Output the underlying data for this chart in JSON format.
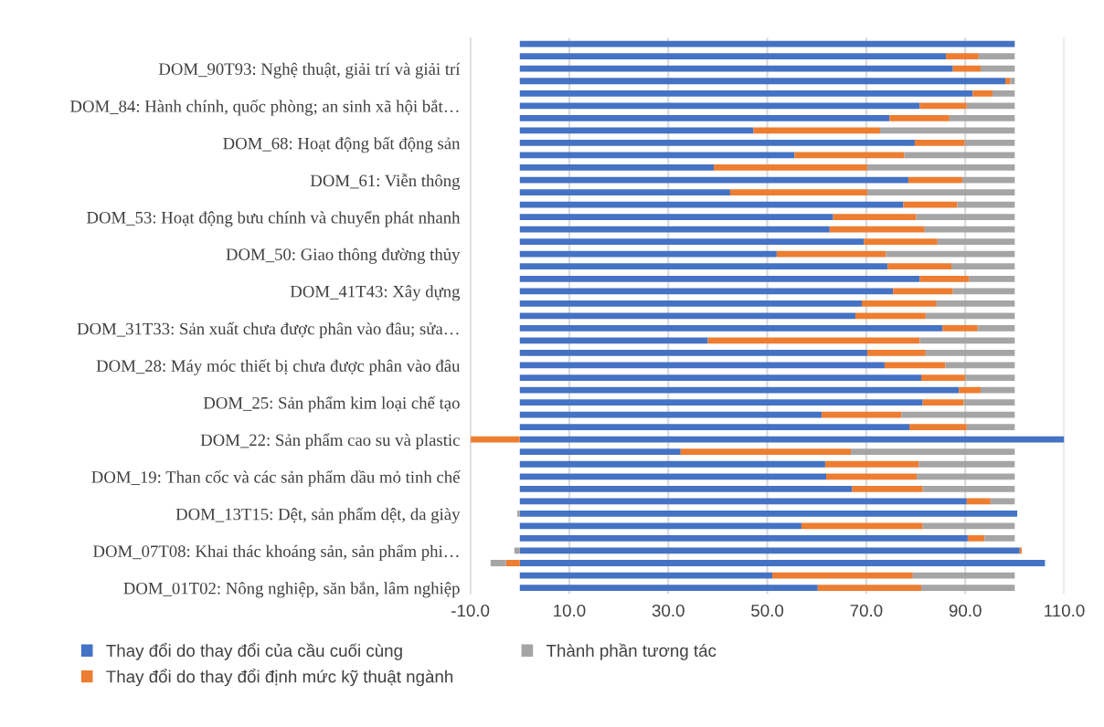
{
  "chart_data": {
    "type": "bar",
    "orientation": "horizontal",
    "stacked": true,
    "categories": [
      null,
      null,
      "DOM_90T93: Nghệ thuật, giải trí và giải trí",
      null,
      null,
      "DOM_84: Hành chính, quốc phòng; an sinh xã hội bắt…",
      null,
      null,
      "DOM_68: Hoạt động bất động sản",
      null,
      null,
      "DOM_61: Viễn thông",
      null,
      null,
      "DOM_53: Hoạt động bưu chính và chuyển phát nhanh",
      null,
      null,
      "DOM_50: Giao thông đường thủy",
      null,
      null,
      "DOM_41T43: Xây dựng",
      null,
      null,
      "DOM_31T33: Sản xuất chưa được phân vào đâu; sửa…",
      null,
      null,
      "DOM_28: Máy móc thiết bị chưa được phân vào đâu",
      null,
      null,
      "DOM_25: Sản phẩm kim loại chế tạo",
      null,
      null,
      "DOM_22: Sản phẩm cao su và plastic",
      null,
      null,
      "DOM_19: Than cốc và các sản phẩm dầu mỏ tinh chế",
      null,
      null,
      "DOM_13T15: Dệt, sản phẩm dệt, da giày",
      null,
      null,
      "DOM_07T08: Khai thác khoáng sản, sản phẩm phi…",
      null,
      null,
      "DOM_01T02: Nông nghiệp, săn bắn, lâm nghiệp"
    ],
    "series": [
      {
        "name": "Thay đổi do thay đổi của cầu cuối cùng",
        "color": "#4472c4",
        "values": [
          100.0,
          86.1,
          87.5,
          98.1,
          91.5,
          80.8,
          74.7,
          47.2,
          79.8,
          55.5,
          39.2,
          78.5,
          42.5,
          77.5,
          63.3,
          62.6,
          69.5,
          51.9,
          74.3,
          80.8,
          75.4,
          69.1,
          67.8,
          85.4,
          38.0,
          70.2,
          73.7,
          81.1,
          88.7,
          81.4,
          61.0,
          78.7,
          110.0,
          32.5,
          61.7,
          61.9,
          67.1,
          90.3,
          100.5,
          56.9,
          90.5,
          101.0,
          106.1,
          51.0,
          60.2
        ]
      },
      {
        "name": "Thay đổi do thay đổi định mức kỹ thuật ngành",
        "color": "#ed7d31",
        "values": [
          0,
          6.6,
          5.6,
          1.0,
          4.0,
          9.5,
          12.1,
          25.6,
          10.1,
          22.2,
          31.0,
          10.9,
          27.7,
          10.9,
          16.8,
          19.2,
          14.9,
          22.1,
          12.9,
          10.0,
          12.1,
          15.1,
          14.2,
          7.1,
          42.8,
          11.8,
          12.3,
          8.9,
          4.4,
          8.3,
          16.1,
          11.6,
          -10.0,
          34.4,
          18.9,
          18.3,
          14.3,
          4.8,
          0,
          24.5,
          3.4,
          0.4,
          -2.8,
          28.4,
          20.9
        ]
      },
      {
        "name": "Thành phần tương tác",
        "color": "#a5a5a5",
        "values": [
          0,
          7.3,
          6.9,
          0.9,
          4.5,
          9.7,
          13.2,
          27.2,
          10.1,
          22.3,
          29.8,
          10.6,
          29.8,
          11.6,
          19.9,
          18.2,
          15.6,
          26.0,
          12.8,
          9.2,
          12.5,
          15.8,
          18.0,
          7.5,
          19.2,
          18.0,
          14.0,
          10.0,
          6.9,
          10.3,
          22.9,
          9.7,
          0,
          33.1,
          19.4,
          19.8,
          18.6,
          4.9,
          -0.5,
          18.6,
          6.1,
          -1.1,
          -3.1,
          20.6,
          18.9
        ]
      }
    ],
    "xlim": [
      -10,
      110
    ],
    "xticks": [
      {
        "value": -10,
        "label": "-10.0"
      },
      {
        "value": 10,
        "label": "10.0"
      },
      {
        "value": 30,
        "label": "30.0"
      },
      {
        "value": 50,
        "label": "50.0"
      },
      {
        "value": 70,
        "label": "70.0"
      },
      {
        "value": 90,
        "label": "90.0"
      },
      {
        "value": 110,
        "label": "110.0"
      }
    ],
    "grid": "x",
    "legend": "bottom"
  }
}
